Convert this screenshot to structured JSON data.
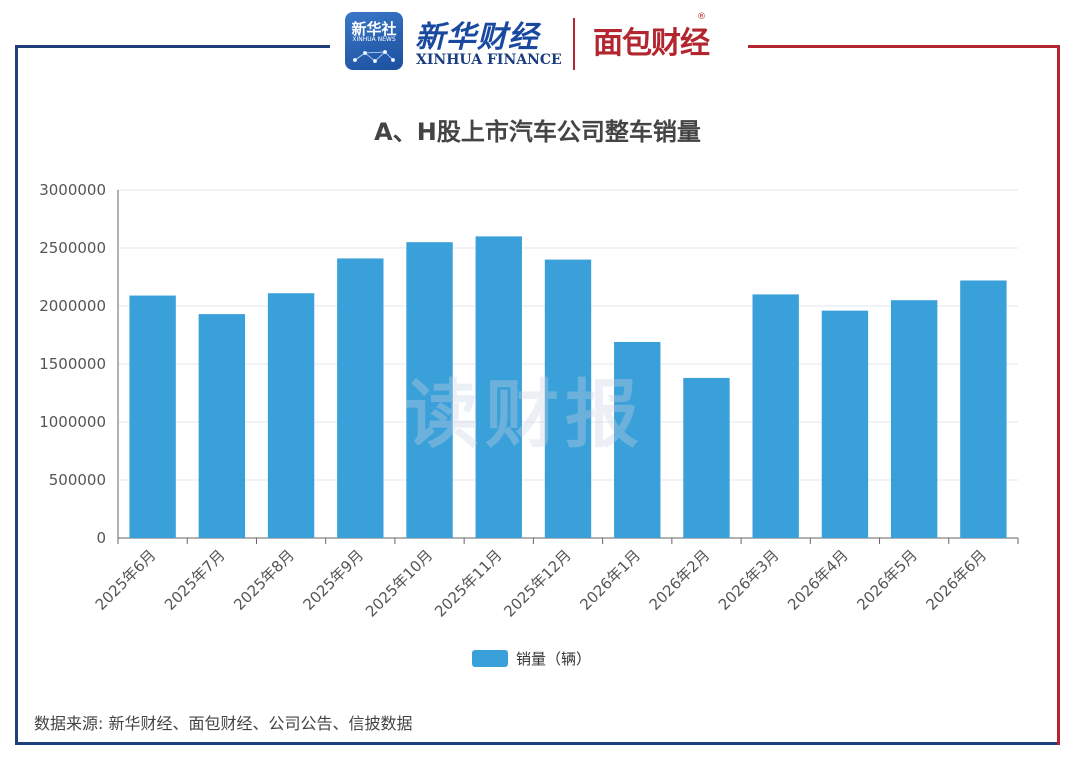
{
  "header": {
    "xinhua_icon_cn": "新华社",
    "xinhua_icon_en": "XINHUA NEWS",
    "xinhua_cn": "新华财经",
    "xinhua_en": "XINHUA FINANCE",
    "mianbao_logo": "面包财经",
    "registered_mark": "®"
  },
  "watermark": "读财报",
  "source": "数据来源: 新华财经、面包财经、公司公告、信披数据",
  "colors": {
    "bar": "#3aa0d9",
    "frame_left": "#1f3f7a",
    "frame_right": "#b3262f"
  },
  "chart_data": {
    "type": "bar",
    "title": "A、H股上市汽车公司整车销量",
    "categories": [
      "2025年6月",
      "2025年7月",
      "2025年8月",
      "2025年9月",
      "2025年10月",
      "2025年11月",
      "2025年12月",
      "2026年1月",
      "2026年2月",
      "2026年3月",
      "2026年4月",
      "2026年5月",
      "2026年6月"
    ],
    "series": [
      {
        "name": "销量（辆）",
        "values": [
          2090000,
          1930000,
          2110000,
          2410000,
          2550000,
          2600000,
          2400000,
          1690000,
          1380000,
          2100000,
          1960000,
          2050000,
          2220000
        ]
      }
    ],
    "yticks": [
      "3000000",
      "2500000",
      "2000000",
      "1500000",
      "1000000",
      "500000",
      "0"
    ],
    "ylim": [
      0,
      3000000
    ],
    "grid": true,
    "legend_position": "bottom"
  }
}
